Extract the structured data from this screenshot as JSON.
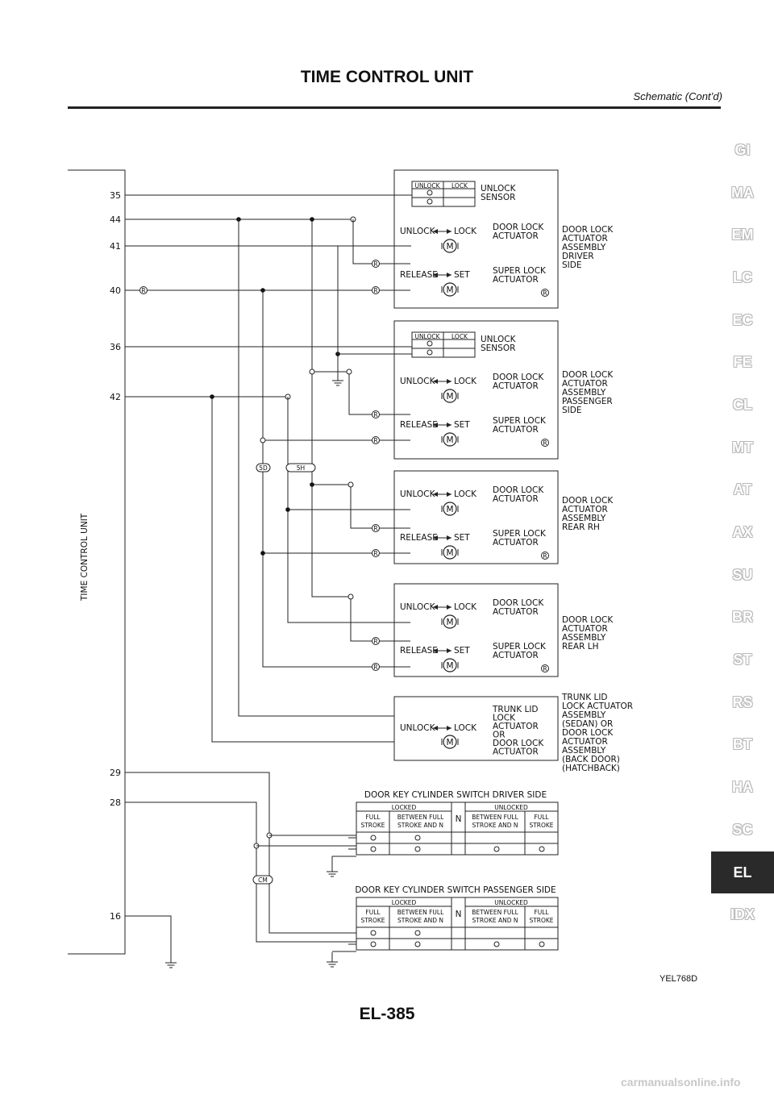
{
  "header": {
    "title": "TIME CONTROL UNIT",
    "subtitle": "Schematic (Cont’d)"
  },
  "tabs": [
    "GI",
    "MA",
    "EM",
    "LC",
    "EC",
    "FE",
    "CL",
    "MT",
    "AT",
    "AX",
    "SU",
    "BR",
    "ST",
    "RS",
    "BT",
    "HA",
    "SC",
    "EL",
    "IDX"
  ],
  "active_tab": "EL",
  "figure_code": "YEL768D",
  "page_number": "EL-385",
  "watermark": "carmanualsonline.info",
  "diagram": {
    "unit_label": "TIME CONTROL UNIT",
    "pins": [
      "35",
      "44",
      "41",
      "40",
      "36",
      "42",
      "29",
      "28",
      "16"
    ],
    "connectors": [
      "5D",
      "5H",
      "CM"
    ],
    "common": {
      "unlock": "UNLOCK",
      "lock": "LOCK",
      "release": "RELEASE",
      "set": "SET",
      "relay_mark": "R",
      "unlock_sensor": [
        "UNLOCK",
        "SENSOR"
      ],
      "door_lock_actuator": [
        "DOOR LOCK",
        "ACTUATOR"
      ],
      "super_lock_actuator": [
        "SUPER LOCK",
        "ACTUATOR"
      ]
    },
    "assemblies": [
      {
        "lines": [
          "DOOR LOCK",
          "ACTUATOR",
          "ASSEMBLY",
          "DRIVER",
          "SIDE"
        ]
      },
      {
        "lines": [
          "DOOR LOCK",
          "ACTUATOR",
          "ASSEMBLY",
          "PASSENGER",
          "SIDE"
        ]
      },
      {
        "lines": [
          "DOOR LOCK",
          "ACTUATOR",
          "ASSEMBLY",
          "REAR RH"
        ]
      },
      {
        "lines": [
          "DOOR LOCK",
          "ACTUATOR",
          "ASSEMBLY",
          "REAR LH"
        ]
      },
      {
        "lines": [
          "TRUNK LID",
          "LOCK ACTUATOR",
          "ASSEMBLY",
          "(SEDAN) OR",
          "DOOR LOCK",
          "ACTUATOR",
          "ASSEMBLY",
          "(BACK DOOR)",
          "(HATCHBACK)"
        ]
      }
    ],
    "trunk_actuator": [
      "TRUNK LID",
      "LOCK",
      "ACTUATOR",
      "OR",
      "DOOR LOCK",
      "ACTUATOR"
    ],
    "key_switches": [
      {
        "title": "DOOR KEY CYLINDER SWITCH DRIVER SIDE",
        "locked": "LOCKED",
        "unlocked": "UNLOCKED",
        "neutral": "N",
        "cols": [
          [
            "FULL",
            "STROKE"
          ],
          [
            "BETWEEN FULL",
            "STROKE AND N"
          ],
          [
            "BETWEEN FULL",
            "STROKE AND N"
          ],
          [
            "FULL",
            "STROKE"
          ]
        ]
      },
      {
        "title": "DOOR KEY CYLINDER SWITCH PASSENGER SIDE",
        "locked": "LOCKED",
        "unlocked": "UNLOCKED",
        "neutral": "N",
        "cols": [
          [
            "FULL",
            "STROKE"
          ],
          [
            "BETWEEN FULL",
            "STROKE AND N"
          ],
          [
            "BETWEEN FULL",
            "STROKE AND N"
          ],
          [
            "FULL",
            "STROKE"
          ]
        ]
      }
    ]
  }
}
